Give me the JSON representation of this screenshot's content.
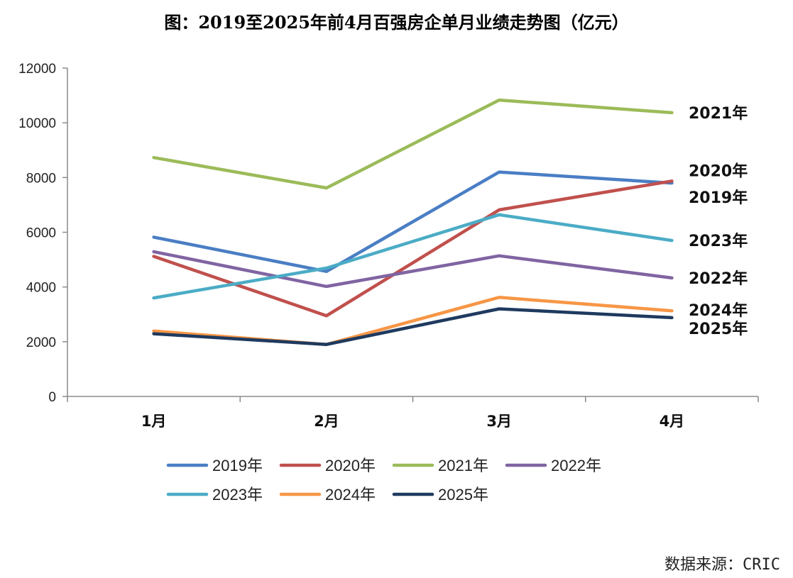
{
  "chart_data": {
    "type": "line",
    "title": "图：2019至2025年前4月百强房企单月业绩走势图（亿元）",
    "source": "数据来源：CRIC",
    "xlabel": "",
    "ylabel": "",
    "categories": [
      "1月",
      "2月",
      "3月",
      "4月"
    ],
    "y_ticks": [
      "0",
      "2000",
      "4000",
      "6000",
      "8000",
      "10000",
      "12000"
    ],
    "ylim": [
      0,
      12000
    ],
    "grid": false,
    "legend_position": "bottom",
    "series": [
      {
        "name": "2019年",
        "end_label": "2019年",
        "color": "#4A7EC4",
        "values": [
          5820,
          4570,
          8200,
          7800
        ]
      },
      {
        "name": "2020年",
        "end_label": "2020年",
        "color": "#C0504D",
        "values": [
          5120,
          2950,
          6820,
          7870
        ]
      },
      {
        "name": "2021年",
        "end_label": "2021年",
        "color": "#9BBB59",
        "values": [
          8730,
          7620,
          10830,
          10370
        ]
      },
      {
        "name": "2022年",
        "end_label": "2022年",
        "color": "#8064A2",
        "values": [
          5290,
          4020,
          5140,
          4330
        ]
      },
      {
        "name": "2023年",
        "end_label": "2023年",
        "color": "#4BACC6",
        "values": [
          3600,
          4690,
          6640,
          5700
        ]
      },
      {
        "name": "2024年",
        "end_label": "2024年",
        "color": "#F79646",
        "values": [
          2390,
          1900,
          3620,
          3130
        ]
      },
      {
        "name": "2025年",
        "end_label": "2025年",
        "color": "#1F3A5F",
        "values": [
          2290,
          1900,
          3200,
          2880
        ]
      }
    ]
  }
}
